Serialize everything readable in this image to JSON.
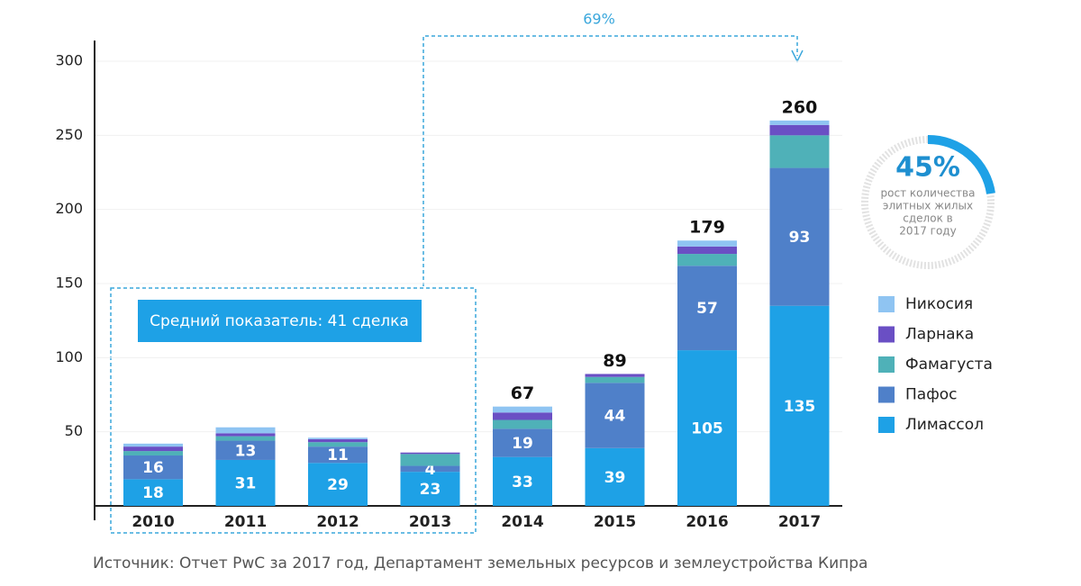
{
  "chart_data": {
    "type": "stacked_bar",
    "categories": [
      "2010",
      "2011",
      "2012",
      "2013",
      "2014",
      "2015",
      "2016",
      "2017"
    ],
    "series": [
      {
        "name": "Лимассол",
        "color": "#1ea1e6",
        "labels": true,
        "values": [
          18,
          31,
          29,
          23,
          33,
          39,
          105,
          135
        ]
      },
      {
        "name": "Пафос",
        "color": "#4f80c9",
        "labels": true,
        "values": [
          16,
          13,
          11,
          4,
          19,
          44,
          57,
          93
        ]
      },
      {
        "name": "Фамагуста",
        "color": "#4fb1b8",
        "labels": false,
        "values": [
          3,
          3,
          3,
          8,
          6,
          4,
          8,
          22
        ]
      },
      {
        "name": "Ларнака",
        "color": "#6a4fc4",
        "labels": false,
        "values": [
          3,
          2,
          2,
          1,
          5,
          2,
          5,
          7
        ]
      },
      {
        "name": "Никосия",
        "color": "#8fc4f2",
        "labels": false,
        "values": [
          2,
          4,
          1,
          0,
          4,
          0,
          4,
          3
        ]
      }
    ],
    "totals": [
      null,
      null,
      null,
      null,
      67,
      89,
      179,
      260
    ],
    "ylim": [
      0,
      300
    ],
    "yticks": [
      50,
      100,
      150,
      200,
      250,
      300
    ],
    "grid": true,
    "annotations": {
      "growth": "69%",
      "average": "Средний показатель: 41 сделка",
      "gauge_value": "45%",
      "gauge_caption": [
        "рост количества",
        "элитных жилых",
        "сделок в",
        "2017 году"
      ],
      "source": "Источник: Отчет PwC за 2017 год, Департамент земельных ресурсов и землеустройства Кипра"
    }
  }
}
